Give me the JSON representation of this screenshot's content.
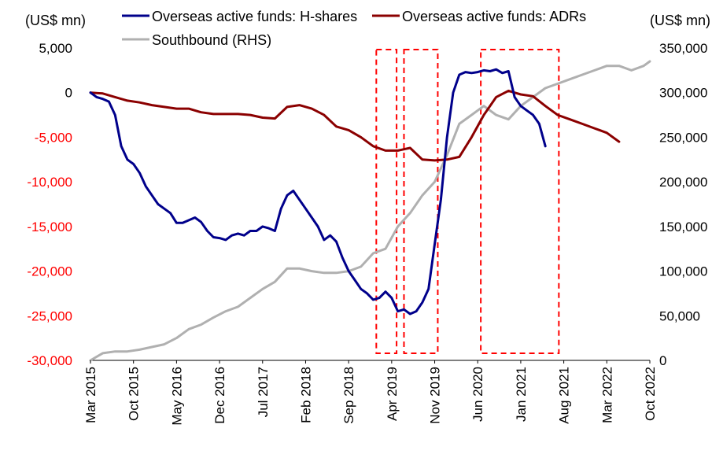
{
  "chart_data": {
    "type": "line",
    "left_unit_label": "(US$ mn)",
    "right_unit_label": "(US$ mn)",
    "colors": {
      "h_shares": "#00008b",
      "adrs": "#8b0000",
      "southbound": "#b0b0b0",
      "highlight": "#ff0000",
      "negative_tick": "#ff0000",
      "positive_tick": "#000000"
    },
    "x_range": [
      0,
      91
    ],
    "x_tick_labels": [
      "Mar 2015",
      "Oct 2015",
      "May 2016",
      "Dec 2016",
      "Jul 2017",
      "Feb 2018",
      "Sep 2018",
      "Apr 2019",
      "Nov 2019",
      "Jun 2020",
      "Jan 2021",
      "Aug 2021",
      "Mar 2022",
      "Oct 2022"
    ],
    "left_axis": {
      "min": -30000,
      "max": 5000,
      "tick_labels": [
        "5,000",
        "0",
        "-5,000",
        "-10,000",
        "-15,000",
        "-20,000",
        "-25,000",
        "-30,000"
      ]
    },
    "right_axis": {
      "min": 0,
      "max": 350000,
      "tick_labels": [
        "350,000",
        "300,000",
        "250,000",
        "200,000",
        "150,000",
        "100,000",
        "50,000",
        "0"
      ]
    },
    "legend": [
      {
        "key": "h_shares",
        "label": "Overseas active funds: H-shares"
      },
      {
        "key": "adrs",
        "label": "Overseas active funds: ADRs"
      },
      {
        "key": "southbound",
        "label": "Southbound (RHS)"
      }
    ],
    "series": [
      {
        "name": "Overseas active funds: H-shares",
        "key": "h_shares",
        "axis": "left",
        "points": [
          [
            0,
            0
          ],
          [
            1,
            -500
          ],
          [
            2,
            -700
          ],
          [
            3,
            -1000
          ],
          [
            4,
            -2500
          ],
          [
            5,
            -6000
          ],
          [
            6,
            -7500
          ],
          [
            7,
            -8000
          ],
          [
            8,
            -9000
          ],
          [
            9,
            -10500
          ],
          [
            10,
            -11500
          ],
          [
            11,
            -12500
          ],
          [
            12,
            -13000
          ],
          [
            13,
            -13500
          ],
          [
            14,
            -14600
          ],
          [
            15,
            -14600
          ],
          [
            16,
            -14300
          ],
          [
            17,
            -14000
          ],
          [
            18,
            -14500
          ],
          [
            19,
            -15500
          ],
          [
            20,
            -16200
          ],
          [
            21,
            -16300
          ],
          [
            22,
            -16500
          ],
          [
            23,
            -16000
          ],
          [
            24,
            -15800
          ],
          [
            25,
            -16000
          ],
          [
            26,
            -15500
          ],
          [
            27,
            -15500
          ],
          [
            28,
            -15000
          ],
          [
            29,
            -15200
          ],
          [
            30,
            -15500
          ],
          [
            31,
            -13000
          ],
          [
            32,
            -11500
          ],
          [
            33,
            -11000
          ],
          [
            34,
            -12000
          ],
          [
            35,
            -13000
          ],
          [
            36,
            -14000
          ],
          [
            37,
            -15000
          ],
          [
            38,
            -16500
          ],
          [
            39,
            -16000
          ],
          [
            40,
            -16700
          ],
          [
            41,
            -18500
          ],
          [
            42,
            -20000
          ],
          [
            43,
            -21000
          ],
          [
            44,
            -22000
          ],
          [
            45,
            -22500
          ],
          [
            46,
            -23200
          ],
          [
            47,
            -23000
          ],
          [
            48,
            -22300
          ],
          [
            49,
            -23000
          ],
          [
            50,
            -24500
          ],
          [
            51,
            -24300
          ],
          [
            52,
            -24800
          ],
          [
            53,
            -24500
          ],
          [
            54,
            -23500
          ],
          [
            55,
            -22000
          ],
          [
            56,
            -17000
          ],
          [
            57,
            -12000
          ],
          [
            58,
            -5000
          ],
          [
            59,
            0
          ],
          [
            60,
            2000
          ],
          [
            61,
            2300
          ],
          [
            62,
            2200
          ],
          [
            63,
            2300
          ],
          [
            64,
            2500
          ],
          [
            65,
            2400
          ],
          [
            66,
            2600
          ],
          [
            67,
            2200
          ],
          [
            68,
            2400
          ],
          [
            69,
            -500
          ],
          [
            70,
            -1500
          ],
          [
            71,
            -2000
          ],
          [
            72,
            -2500
          ],
          [
            73,
            -3500
          ],
          [
            74,
            -6000
          ]
        ]
      },
      {
        "name": "Overseas active funds: ADRs",
        "key": "adrs",
        "axis": "left",
        "points": [
          [
            0,
            0
          ],
          [
            2,
            -100
          ],
          [
            4,
            -500
          ],
          [
            6,
            -900
          ],
          [
            8,
            -1100
          ],
          [
            10,
            -1400
          ],
          [
            12,
            -1600
          ],
          [
            14,
            -1800
          ],
          [
            16,
            -1800
          ],
          [
            18,
            -2200
          ],
          [
            20,
            -2400
          ],
          [
            22,
            -2400
          ],
          [
            24,
            -2400
          ],
          [
            26,
            -2500
          ],
          [
            28,
            -2800
          ],
          [
            30,
            -2900
          ],
          [
            32,
            -1600
          ],
          [
            34,
            -1400
          ],
          [
            36,
            -1800
          ],
          [
            38,
            -2500
          ],
          [
            40,
            -3800
          ],
          [
            42,
            -4200
          ],
          [
            44,
            -5000
          ],
          [
            46,
            -6000
          ],
          [
            48,
            -6500
          ],
          [
            50,
            -6500
          ],
          [
            52,
            -6200
          ],
          [
            54,
            -7500
          ],
          [
            56,
            -7600
          ],
          [
            58,
            -7500
          ],
          [
            60,
            -7200
          ],
          [
            62,
            -5000
          ],
          [
            64,
            -2500
          ],
          [
            66,
            -500
          ],
          [
            68,
            200
          ],
          [
            70,
            -200
          ],
          [
            72,
            -400
          ],
          [
            74,
            -1500
          ],
          [
            76,
            -2500
          ],
          [
            78,
            -3000
          ],
          [
            80,
            -3500
          ],
          [
            82,
            -4000
          ],
          [
            84,
            -4500
          ],
          [
            86,
            -5500
          ]
        ]
      },
      {
        "name": "Southbound (RHS)",
        "key": "southbound",
        "axis": "right",
        "points": [
          [
            0,
            0
          ],
          [
            2,
            8000
          ],
          [
            4,
            10000
          ],
          [
            6,
            10000
          ],
          [
            8,
            12000
          ],
          [
            10,
            15000
          ],
          [
            12,
            18000
          ],
          [
            14,
            25000
          ],
          [
            16,
            35000
          ],
          [
            18,
            40000
          ],
          [
            20,
            48000
          ],
          [
            22,
            55000
          ],
          [
            24,
            60000
          ],
          [
            26,
            70000
          ],
          [
            28,
            80000
          ],
          [
            30,
            88000
          ],
          [
            32,
            103000
          ],
          [
            34,
            103000
          ],
          [
            36,
            100000
          ],
          [
            38,
            98000
          ],
          [
            40,
            98000
          ],
          [
            42,
            100000
          ],
          [
            44,
            105000
          ],
          [
            46,
            120000
          ],
          [
            48,
            125000
          ],
          [
            50,
            150000
          ],
          [
            52,
            165000
          ],
          [
            54,
            185000
          ],
          [
            56,
            200000
          ],
          [
            58,
            230000
          ],
          [
            60,
            265000
          ],
          [
            62,
            275000
          ],
          [
            64,
            285000
          ],
          [
            66,
            275000
          ],
          [
            68,
            270000
          ],
          [
            70,
            285000
          ],
          [
            72,
            295000
          ],
          [
            74,
            305000
          ],
          [
            76,
            310000
          ],
          [
            78,
            315000
          ],
          [
            80,
            320000
          ],
          [
            82,
            325000
          ],
          [
            84,
            330000
          ],
          [
            86,
            330000
          ],
          [
            88,
            325000
          ],
          [
            90,
            330000
          ],
          [
            91,
            335000
          ]
        ]
      }
    ],
    "highlight_boxes_x": [
      [
        46.5,
        49.8
      ],
      [
        51.0,
        56.5
      ],
      [
        63.5,
        76.2
      ]
    ]
  }
}
